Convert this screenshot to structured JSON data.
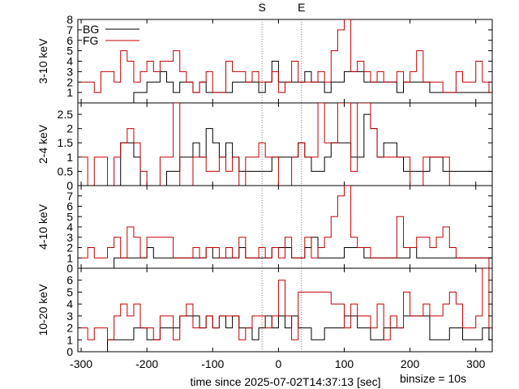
{
  "chart_data": {
    "type": "line",
    "step": true,
    "x_axis": {
      "label": "time since 2025-07-02T14:37:13 [sec]",
      "range": [
        -305,
        325
      ],
      "ticks": [
        -300,
        -200,
        -100,
        0,
        100,
        200,
        300
      ]
    },
    "annotation": "binsize = 10s",
    "markers": [
      {
        "label": "S",
        "x": -25
      },
      {
        "label": "E",
        "x": 35
      }
    ],
    "legend": [
      "BG",
      "FG"
    ],
    "colors": {
      "BG": "#000000",
      "FG": "#c00000"
    },
    "panels": [
      {
        "ylabel": "3-10 keV",
        "ylim": [
          0,
          8
        ],
        "yticks": [
          1,
          2,
          3,
          4,
          5,
          6,
          7,
          8
        ],
        "BG": [
          0,
          0,
          0,
          0,
          0,
          0,
          0,
          0,
          1,
          1,
          2,
          2,
          3,
          2,
          1,
          2,
          2,
          1,
          2,
          1,
          1,
          1,
          1,
          2,
          2,
          2,
          2,
          1,
          2,
          4,
          2,
          2,
          2,
          2,
          3,
          2,
          2,
          1,
          2,
          2,
          3,
          3,
          3,
          2,
          2,
          2,
          2,
          2,
          1,
          2,
          2,
          2,
          2,
          1,
          1,
          1,
          1,
          1,
          1,
          1,
          1,
          1,
          1
        ],
        "FG": [
          2,
          2,
          1,
          3,
          3,
          2,
          5,
          4,
          2,
          3,
          4,
          3,
          4,
          4,
          5,
          3,
          2,
          1,
          2,
          3,
          1,
          1,
          4,
          3,
          3,
          2,
          3,
          2,
          2,
          3,
          1,
          2,
          4,
          2,
          2,
          2,
          3,
          2,
          5,
          7,
          9,
          3,
          4,
          3,
          2,
          3,
          2,
          2,
          3,
          2,
          3,
          5,
          2,
          2,
          2,
          1,
          1,
          3,
          2,
          2,
          4,
          2,
          1
        ],
        "FG_start": -300,
        "BG_start": -300
      },
      {
        "ylabel": "2-4 keV",
        "ylim": [
          0,
          2.9
        ],
        "yticks": [
          0,
          0.5,
          1,
          1.5,
          2,
          2.5
        ],
        "BG": [
          0,
          0,
          0,
          0,
          0,
          0,
          1.5,
          1.5,
          1,
          0,
          0,
          0,
          0,
          0.5,
          0.5,
          1,
          1,
          1.5,
          1,
          2,
          1.5,
          1,
          1.5,
          1,
          0.5,
          0.5,
          0.5,
          0.5,
          0.5,
          1,
          1,
          1,
          1,
          1.5,
          1,
          0.5,
          0.5,
          1,
          1.5,
          1.5,
          1.5,
          1,
          1,
          2.5,
          2,
          1,
          1.5,
          1.5,
          1,
          0.5,
          0.5,
          0.5,
          0.5,
          1,
          1,
          0.5,
          0.5,
          0.5,
          0.5,
          0.5,
          0.5,
          0.5,
          0.5
        ],
        "FG": [
          1,
          0,
          1,
          1,
          0,
          1,
          1.5,
          2,
          1.5,
          0.5,
          0,
          0,
          1,
          1,
          3,
          0,
          0,
          1,
          1,
          0.5,
          0.5,
          1,
          0.5,
          1,
          0,
          1,
          1,
          1.5,
          1,
          1,
          0,
          0,
          1,
          1.5,
          1,
          1,
          3,
          1.5,
          1.5,
          3,
          3,
          0.5,
          3,
          3,
          2,
          1,
          1,
          1,
          1,
          1,
          0,
          0,
          1,
          1,
          1,
          1,
          0,
          0,
          0,
          0,
          0,
          0,
          0
        ],
        "FG_start": -300,
        "BG_start": -300
      },
      {
        "ylabel": "4-10 keV",
        "ylim": [
          0,
          8
        ],
        "yticks": [
          0,
          1,
          2,
          3,
          4,
          5,
          6,
          7
        ],
        "BG": [
          0,
          0,
          0,
          0,
          0,
          1,
          1,
          1,
          1,
          1,
          2,
          1,
          1,
          1,
          1,
          1,
          1,
          1,
          1,
          2,
          1,
          1,
          1,
          1,
          2,
          1,
          1,
          1,
          1,
          2,
          2,
          2,
          1,
          1,
          2,
          3,
          1,
          1,
          1,
          1,
          2,
          2,
          2,
          1,
          1,
          1,
          1,
          1,
          1,
          1,
          2,
          1,
          1,
          1,
          1,
          1,
          1,
          1,
          1,
          1,
          1,
          1,
          1
        ],
        "FG": [
          1,
          2,
          1,
          1,
          2,
          3,
          1,
          4,
          3,
          1,
          3,
          3,
          3,
          3,
          1,
          1,
          1,
          2,
          1,
          2,
          2,
          1,
          2,
          1,
          3,
          1,
          1,
          2,
          1,
          2,
          1,
          3,
          1,
          1,
          3,
          1,
          2,
          3,
          5,
          7,
          8,
          3,
          2,
          2,
          1,
          1,
          1,
          1,
          5,
          2,
          2,
          3,
          3,
          2,
          3,
          4,
          2,
          1,
          1,
          1,
          1,
          1,
          0
        ],
        "FG_start": -300,
        "BG_start": -300
      },
      {
        "ylabel": "10-20 keV",
        "ylim": [
          0,
          7
        ],
        "yticks": [
          0,
          1,
          2,
          3,
          4,
          5,
          6
        ],
        "BG": [
          0,
          0,
          0,
          0,
          1,
          1,
          1,
          1,
          2,
          2,
          1,
          1,
          2,
          2,
          2,
          3,
          3,
          3,
          2,
          3,
          2,
          3,
          2,
          3,
          2,
          2,
          1,
          2,
          3,
          2,
          3,
          2,
          3,
          2,
          2,
          1,
          1,
          2,
          2,
          2,
          3,
          3,
          2,
          2,
          1,
          1,
          2,
          2,
          2,
          3,
          3,
          3,
          3,
          1,
          1,
          1,
          2,
          2,
          1,
          1,
          1,
          2,
          1
        ],
        "FG": [
          2,
          1,
          2,
          2,
          1,
          3,
          4,
          3,
          4,
          2,
          2,
          1,
          3,
          3,
          1,
          3,
          4,
          2,
          2,
          3,
          2,
          3,
          3,
          3,
          1,
          2,
          3,
          3,
          2,
          3,
          6,
          3,
          1,
          5,
          5,
          5,
          5,
          5,
          4,
          4,
          2,
          4,
          3,
          3,
          2,
          4,
          1,
          3,
          2,
          5,
          3,
          3,
          4,
          3,
          3,
          4,
          5,
          4,
          2,
          2,
          3,
          7,
          2
        ],
        "FG_start": -300,
        "BG_start": -300
      }
    ]
  }
}
